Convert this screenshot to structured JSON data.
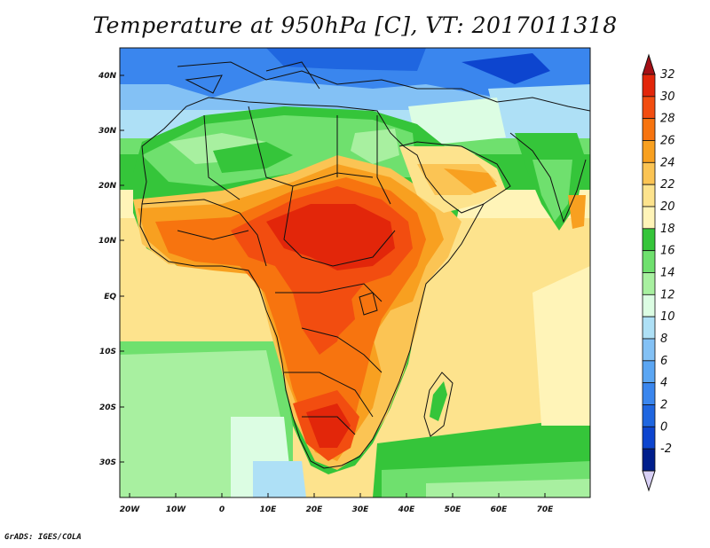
{
  "title": "Temperature at 950hPa [C], VT: 2017011318",
  "credit": "GrADS: IGES/COLA",
  "lat_labels": [
    "40N",
    "30N",
    "20N",
    "10N",
    "EQ",
    "10S",
    "20S",
    "30S"
  ],
  "lon_labels": [
    "20W",
    "10W",
    "0",
    "10E",
    "20E",
    "30E",
    "40E",
    "50E",
    "60E",
    "70E"
  ],
  "colorbar": {
    "labels": [
      "32",
      "30",
      "28",
      "26",
      "24",
      "22",
      "20",
      "18",
      "16",
      "14",
      "12",
      "10",
      "8",
      "6",
      "4",
      "2",
      "0",
      "-2"
    ],
    "colors": [
      "#a50f15",
      "#e2260a",
      "#f24d10",
      "#f7740f",
      "#f8a020",
      "#fbc454",
      "#fde38d",
      "#fff4b8",
      "#35c53a",
      "#6fe06e",
      "#a8f0a0",
      "#dcfde3",
      "#aee0f6",
      "#83c1f5",
      "#5ba6f3",
      "#3a86ee",
      "#1f66e0",
      "#0d45cf",
      "#001e8c",
      "#d8d0f5"
    ]
  }
}
